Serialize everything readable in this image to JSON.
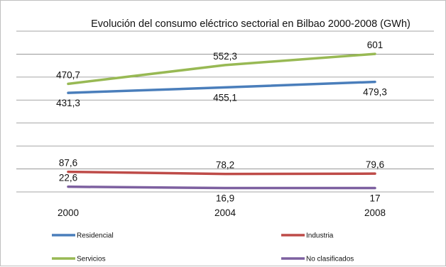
{
  "chart_data": {
    "type": "line",
    "title": "Evolución del consumo eléctrico sectorial en Bilbao 2000-2008  (GWh)",
    "categories": [
      "2000",
      "2004",
      "2008"
    ],
    "ylim": [
      0,
      700
    ],
    "grid": true,
    "legend_position": "bottom",
    "series": [
      {
        "name": "Residencial",
        "color": "#4a7ebb",
        "values": [
          431.3,
          455.1,
          479.3
        ],
        "labels": [
          "431,3",
          "455,1",
          "479,3"
        ],
        "label_side": [
          "below",
          "below",
          "below"
        ]
      },
      {
        "name": "Industria",
        "color": "#be4b48",
        "values": [
          87.6,
          78.2,
          79.6
        ],
        "labels": [
          "87,6",
          "78,2",
          "79,6"
        ],
        "label_side": [
          "above",
          "above",
          "above"
        ]
      },
      {
        "name": "Servicios",
        "color": "#98b954",
        "values": [
          470.7,
          552.3,
          601
        ],
        "labels": [
          "470,7",
          "552,3",
          "601"
        ],
        "label_side": [
          "above",
          "above",
          "above"
        ]
      },
      {
        "name": "No clasificados",
        "color": "#7d60a0",
        "values": [
          22.6,
          16.9,
          17
        ],
        "labels": [
          "22,6",
          "16,9",
          "17"
        ],
        "label_side": [
          "above",
          "below",
          "below"
        ]
      }
    ]
  }
}
